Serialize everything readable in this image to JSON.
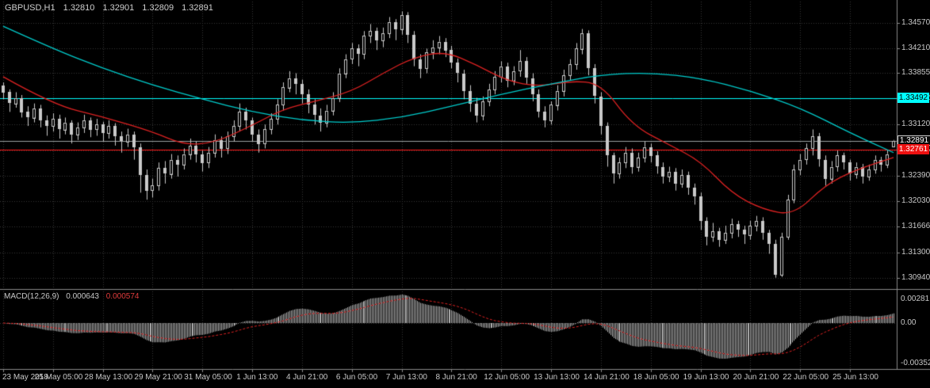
{
  "header": {
    "symbol_period": "GBPUSD,H1",
    "open": "1.32810",
    "high": "1.32901",
    "low": "1.32809",
    "close": "1.32891"
  },
  "indicator": {
    "label": "MACD(12,26,9)",
    "main_value": "0.000643",
    "signal_value": "0.000574"
  },
  "macd_axis": {
    "max": "0.00281",
    "zero": "0.00",
    "min": "-0.00352"
  },
  "badges": {
    "upper": {
      "value": "1.33492"
    },
    "current": {
      "value": "1.32891"
    },
    "lower": {
      "value": "1.32761"
    }
  },
  "colors": {
    "background": "#000000",
    "grid": "#363636",
    "candle": "#c9c9c9",
    "ma_fast": "#dd2222",
    "ma_slow": "#00cccc",
    "hline_upper": "#00ffff",
    "hline_lower": "#ff1414",
    "current_line": "#9aa0a0",
    "histogram": "#b5b5b5",
    "signal": "#dd2222",
    "separator": "#8a8a8a",
    "text": "#c8c8c8"
  },
  "chart_data": {
    "type": "candlestick",
    "symbol": "GBPUSD",
    "timeframe": "H1",
    "current_bar": {
      "open": 1.3281,
      "high": 1.32901,
      "low": 1.32809,
      "close": 1.32891
    },
    "y_ticks": [
      1.3457,
      1.3421,
      1.33855,
      1.33492,
      1.3312,
      1.32755,
      1.3239,
      1.3203,
      1.31666,
      1.313,
      1.3094
    ],
    "x_tick_step": 8,
    "x_labels": [
      "23 May 2018",
      "25 May 05:00",
      "28 May 13:00",
      "29 May 21:00",
      "31 May 05:00",
      "1 Jun 13:00",
      "4 Jun 21:00",
      "6 Jun 05:00",
      "7 Jun 13:00",
      "8 Jun 21:00",
      "12 Jun 05:00",
      "13 Jun 13:00",
      "14 Jun 21:00",
      "18 Jun 05:00",
      "19 Jun 13:00",
      "20 Jun 21:00",
      "22 Jun 05:00",
      "25 Jun 13:00"
    ],
    "hlines": [
      {
        "price": 1.33492,
        "role": "upper_level",
        "color_key": "hline_upper"
      },
      {
        "price": 1.32761,
        "role": "lower_level",
        "color_key": "hline_lower"
      },
      {
        "price": 1.32891,
        "role": "current_price",
        "color_key": "current_line"
      }
    ],
    "candles": [
      [
        1.3368,
        1.3372,
        1.3348,
        1.3358
      ],
      [
        1.3358,
        1.3362,
        1.333,
        1.3342
      ],
      [
        1.3342,
        1.3358,
        1.3336,
        1.335
      ],
      [
        1.335,
        1.3354,
        1.3322,
        1.333
      ],
      [
        1.333,
        1.3338,
        1.331,
        1.3322
      ],
      [
        1.3322,
        1.3342,
        1.3315,
        1.3335
      ],
      [
        1.3335,
        1.334,
        1.3308,
        1.3318
      ],
      [
        1.3318,
        1.3325,
        1.3296,
        1.331
      ],
      [
        1.331,
        1.3328,
        1.3302,
        1.332
      ],
      [
        1.332,
        1.3326,
        1.3292,
        1.3305
      ],
      [
        1.3305,
        1.3322,
        1.3298,
        1.3315
      ],
      [
        1.3315,
        1.3318,
        1.3285,
        1.3298
      ],
      [
        1.3298,
        1.3315,
        1.329,
        1.3308
      ],
      [
        1.3308,
        1.3326,
        1.33,
        1.3318
      ],
      [
        1.3318,
        1.3322,
        1.3294,
        1.3305
      ],
      [
        1.3305,
        1.332,
        1.3296,
        1.3312
      ],
      [
        1.3312,
        1.3316,
        1.3288,
        1.33
      ],
      [
        1.33,
        1.3318,
        1.3292,
        1.331
      ],
      [
        1.331,
        1.3314,
        1.3282,
        1.3295
      ],
      [
        1.3295,
        1.3302,
        1.3272,
        1.3288
      ],
      [
        1.3288,
        1.3306,
        1.328,
        1.3298
      ],
      [
        1.3298,
        1.3302,
        1.3262,
        1.328
      ],
      [
        1.328,
        1.3285,
        1.3215,
        1.324
      ],
      [
        1.324,
        1.3248,
        1.3205,
        1.3218
      ],
      [
        1.3218,
        1.3235,
        1.3208,
        1.3225
      ],
      [
        1.3225,
        1.3258,
        1.3218,
        1.325
      ],
      [
        1.325,
        1.326,
        1.3228,
        1.3242
      ],
      [
        1.3242,
        1.327,
        1.3235,
        1.3262
      ],
      [
        1.3262,
        1.3268,
        1.3238,
        1.3255
      ],
      [
        1.3255,
        1.3278,
        1.3248,
        1.327
      ],
      [
        1.327,
        1.3292,
        1.3262,
        1.3282
      ],
      [
        1.3282,
        1.3288,
        1.3258,
        1.327
      ],
      [
        1.327,
        1.3275,
        1.3245,
        1.3258
      ],
      [
        1.3258,
        1.328,
        1.325,
        1.3272
      ],
      [
        1.3272,
        1.3298,
        1.3265,
        1.329
      ],
      [
        1.329,
        1.3295,
        1.3265,
        1.3278
      ],
      [
        1.3278,
        1.3302,
        1.327,
        1.3295
      ],
      [
        1.3295,
        1.3318,
        1.3288,
        1.331
      ],
      [
        1.331,
        1.3342,
        1.3302,
        1.333
      ],
      [
        1.333,
        1.3336,
        1.3305,
        1.3318
      ],
      [
        1.3318,
        1.3322,
        1.3288,
        1.3298
      ],
      [
        1.3298,
        1.3305,
        1.3272,
        1.3285
      ],
      [
        1.3285,
        1.3312,
        1.3278,
        1.3305
      ],
      [
        1.3305,
        1.3328,
        1.3298,
        1.332
      ],
      [
        1.332,
        1.3348,
        1.3312,
        1.334
      ],
      [
        1.334,
        1.3372,
        1.3332,
        1.3365
      ],
      [
        1.3365,
        1.3388,
        1.3358,
        1.3378
      ],
      [
        1.3378,
        1.3385,
        1.3355,
        1.337
      ],
      [
        1.337,
        1.3376,
        1.3342,
        1.3355
      ],
      [
        1.3355,
        1.3362,
        1.3328,
        1.334
      ],
      [
        1.334,
        1.3348,
        1.3312,
        1.3325
      ],
      [
        1.3325,
        1.3335,
        1.3302,
        1.3315
      ],
      [
        1.3315,
        1.334,
        1.3308,
        1.3332
      ],
      [
        1.3332,
        1.3358,
        1.3325,
        1.335
      ],
      [
        1.335,
        1.3392,
        1.3344,
        1.3385
      ],
      [
        1.3385,
        1.3412,
        1.3378,
        1.3405
      ],
      [
        1.3405,
        1.3428,
        1.3398,
        1.342
      ],
      [
        1.342,
        1.3426,
        1.3395,
        1.3412
      ],
      [
        1.3412,
        1.3445,
        1.3405,
        1.3438
      ],
      [
        1.3438,
        1.3455,
        1.3428,
        1.3445
      ],
      [
        1.3445,
        1.345,
        1.3418,
        1.3432
      ],
      [
        1.3432,
        1.345,
        1.3422,
        1.3442
      ],
      [
        1.3442,
        1.3465,
        1.3435,
        1.3458
      ],
      [
        1.3458,
        1.3462,
        1.3432,
        1.3448
      ],
      [
        1.3448,
        1.3473,
        1.344,
        1.3468
      ],
      [
        1.3468,
        1.3472,
        1.3428,
        1.344
      ],
      [
        1.344,
        1.3445,
        1.3395,
        1.3405
      ],
      [
        1.3405,
        1.3412,
        1.3378,
        1.3392
      ],
      [
        1.3392,
        1.342,
        1.3385,
        1.3415
      ],
      [
        1.3415,
        1.3432,
        1.3405,
        1.3422
      ],
      [
        1.3422,
        1.3438,
        1.3412,
        1.343
      ],
      [
        1.343,
        1.3435,
        1.3408,
        1.3418
      ],
      [
        1.3418,
        1.3424,
        1.3392,
        1.34
      ],
      [
        1.34,
        1.3406,
        1.3372,
        1.3385
      ],
      [
        1.3385,
        1.339,
        1.3348,
        1.336
      ],
      [
        1.336,
        1.3368,
        1.333,
        1.3342
      ],
      [
        1.3342,
        1.335,
        1.3315,
        1.3325
      ],
      [
        1.3325,
        1.3352,
        1.3318,
        1.3345
      ],
      [
        1.3345,
        1.337,
        1.3338,
        1.3362
      ],
      [
        1.3362,
        1.3388,
        1.3355,
        1.338
      ],
      [
        1.338,
        1.3402,
        1.3372,
        1.3395
      ],
      [
        1.3395,
        1.34,
        1.3365,
        1.3375
      ],
      [
        1.3375,
        1.3395,
        1.3368,
        1.3388
      ],
      [
        1.3388,
        1.3418,
        1.338,
        1.3402
      ],
      [
        1.3402,
        1.3408,
        1.337,
        1.3378
      ],
      [
        1.3378,
        1.3385,
        1.3345,
        1.3355
      ],
      [
        1.3355,
        1.3362,
        1.3322,
        1.333
      ],
      [
        1.333,
        1.3338,
        1.3308,
        1.3318
      ],
      [
        1.3318,
        1.3345,
        1.3312,
        1.334
      ],
      [
        1.334,
        1.3368,
        1.3332,
        1.336
      ],
      [
        1.336,
        1.339,
        1.3352,
        1.3382
      ],
      [
        1.3382,
        1.3405,
        1.3375,
        1.3398
      ],
      [
        1.3398,
        1.3428,
        1.339,
        1.342
      ],
      [
        1.342,
        1.3448,
        1.3412,
        1.3442
      ],
      [
        1.3442,
        1.3446,
        1.3382,
        1.3392
      ],
      [
        1.3392,
        1.3398,
        1.3342,
        1.3352
      ],
      [
        1.3352,
        1.3358,
        1.3298,
        1.331
      ],
      [
        1.331,
        1.3315,
        1.3252,
        1.3268
      ],
      [
        1.3268,
        1.3272,
        1.3228,
        1.3242
      ],
      [
        1.3242,
        1.3265,
        1.3235,
        1.3258
      ],
      [
        1.3258,
        1.328,
        1.325,
        1.3272
      ],
      [
        1.3272,
        1.3278,
        1.3242,
        1.3252
      ],
      [
        1.3252,
        1.3272,
        1.3245,
        1.3265
      ],
      [
        1.3265,
        1.3288,
        1.3258,
        1.328
      ],
      [
        1.328,
        1.3285,
        1.3258,
        1.3268
      ],
      [
        1.3268,
        1.3274,
        1.3242,
        1.3252
      ],
      [
        1.3252,
        1.3258,
        1.3228,
        1.3238
      ],
      [
        1.3238,
        1.3252,
        1.323,
        1.3245
      ],
      [
        1.3245,
        1.325,
        1.3218,
        1.3228
      ],
      [
        1.3228,
        1.3248,
        1.3222,
        1.324
      ],
      [
        1.324,
        1.3245,
        1.3212,
        1.3222
      ],
      [
        1.3222,
        1.3228,
        1.3198,
        1.321
      ],
      [
        1.321,
        1.3215,
        1.3162,
        1.3175
      ],
      [
        1.3175,
        1.318,
        1.314,
        1.3152
      ],
      [
        1.3152,
        1.3172,
        1.3145,
        1.316
      ],
      [
        1.316,
        1.3165,
        1.3138,
        1.3148
      ],
      [
        1.3148,
        1.3168,
        1.3142,
        1.3158
      ],
      [
        1.3158,
        1.3178,
        1.315,
        1.317
      ],
      [
        1.317,
        1.3175,
        1.3152,
        1.3162
      ],
      [
        1.3162,
        1.3168,
        1.3142,
        1.3155
      ],
      [
        1.3155,
        1.3175,
        1.3148,
        1.3168
      ],
      [
        1.3168,
        1.3182,
        1.316,
        1.3175
      ],
      [
        1.3175,
        1.318,
        1.3148,
        1.3158
      ],
      [
        1.3158,
        1.3162,
        1.3128,
        1.3142
      ],
      [
        1.3142,
        1.3148,
        1.3094,
        1.3098
      ],
      [
        1.3098,
        1.3158,
        1.3095,
        1.3152
      ],
      [
        1.3152,
        1.3212,
        1.3148,
        1.3205
      ],
      [
        1.3205,
        1.3255,
        1.32,
        1.3248
      ],
      [
        1.3248,
        1.327,
        1.324,
        1.3262
      ],
      [
        1.3262,
        1.3285,
        1.3255,
        1.3278
      ],
      [
        1.3278,
        1.3305,
        1.3268,
        1.3295
      ],
      [
        1.3295,
        1.33,
        1.3252,
        1.3262
      ],
      [
        1.3262,
        1.3268,
        1.3225,
        1.3235
      ],
      [
        1.3235,
        1.326,
        1.3228,
        1.3252
      ],
      [
        1.3252,
        1.3275,
        1.3245,
        1.3268
      ],
      [
        1.3268,
        1.3272,
        1.3248,
        1.3258
      ],
      [
        1.3258,
        1.3262,
        1.3232,
        1.3242
      ],
      [
        1.3242,
        1.3258,
        1.3235,
        1.3252
      ],
      [
        1.3252,
        1.3256,
        1.3228,
        1.3238
      ],
      [
        1.3238,
        1.3255,
        1.3232,
        1.3248
      ],
      [
        1.3248,
        1.3268,
        1.3242,
        1.3262
      ],
      [
        1.3262,
        1.3266,
        1.3245,
        1.3255
      ],
      [
        1.3255,
        1.3275,
        1.325,
        1.327
      ],
      [
        1.3281,
        1.32901,
        1.32809,
        1.32891
      ]
    ],
    "series": [
      {
        "name": "MA fast (red)",
        "color_key": "ma_fast",
        "points": [
          [
            0,
            1.338
          ],
          [
            8,
            1.334
          ],
          [
            16,
            1.3323
          ],
          [
            24,
            1.3302
          ],
          [
            29,
            1.3283
          ],
          [
            34,
            1.3286
          ],
          [
            40,
            1.3311
          ],
          [
            45,
            1.3334
          ],
          [
            50,
            1.3345
          ],
          [
            56,
            1.3359
          ],
          [
            61,
            1.3385
          ],
          [
            66,
            1.3408
          ],
          [
            71,
            1.3416
          ],
          [
            76,
            1.3397
          ],
          [
            81,
            1.3374
          ],
          [
            86,
            1.3366
          ],
          [
            91,
            1.3374
          ],
          [
            96,
            1.3371
          ],
          [
            101,
            1.3311
          ],
          [
            107,
            1.3283
          ],
          [
            112,
            1.326
          ],
          [
            117,
            1.3214
          ],
          [
            122,
            1.3191
          ],
          [
            127,
            1.3183
          ],
          [
            132,
            1.3226
          ],
          [
            137,
            1.3248
          ],
          [
            143,
            1.3265
          ]
        ]
      },
      {
        "name": "MA slow (cyan)",
        "color_key": "ma_slow",
        "points": [
          [
            0,
            1.3452
          ],
          [
            8,
            1.342
          ],
          [
            16,
            1.3392
          ],
          [
            24,
            1.3368
          ],
          [
            32,
            1.3348
          ],
          [
            40,
            1.333
          ],
          [
            48,
            1.3318
          ],
          [
            56,
            1.3314
          ],
          [
            64,
            1.3322
          ],
          [
            72,
            1.3338
          ],
          [
            80,
            1.3355
          ],
          [
            88,
            1.337
          ],
          [
            96,
            1.3383
          ],
          [
            104,
            1.3386
          ],
          [
            112,
            1.3378
          ],
          [
            120,
            1.336
          ],
          [
            128,
            1.3336
          ],
          [
            136,
            1.33
          ],
          [
            143,
            1.3272
          ]
        ]
      }
    ],
    "macd": {
      "params": [
        12,
        26,
        9
      ],
      "current_main": 0.000643,
      "current_signal": 0.000574,
      "axis_max": 0.00281,
      "axis_min": -0.00352
    }
  }
}
